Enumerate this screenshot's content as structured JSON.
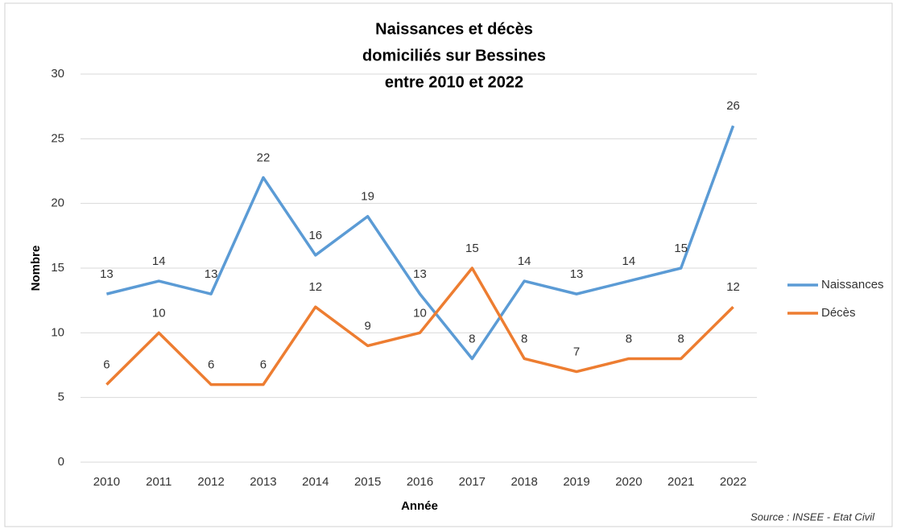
{
  "chart_data": {
    "type": "line",
    "title": [
      "Naissances et décès",
      "domiciliés sur Bessines",
      "entre 2010 et 2022"
    ],
    "x_label": "Année",
    "y_label": "Nombre",
    "source": "Source : INSEE - Etat Civil",
    "categories": [
      "2010",
      "2011",
      "2012",
      "2013",
      "2014",
      "2015",
      "2016",
      "2017",
      "2018",
      "2019",
      "2020",
      "2021",
      "2022"
    ],
    "series": [
      {
        "name": "Naissances",
        "color": "#5b9bd5",
        "values": [
          13,
          14,
          13,
          22,
          16,
          19,
          13,
          8,
          14,
          13,
          14,
          15,
          26
        ]
      },
      {
        "name": "Décès",
        "color": "#ed7d31",
        "values": [
          6,
          10,
          6,
          6,
          12,
          9,
          10,
          15,
          8,
          7,
          8,
          8,
          12
        ]
      }
    ],
    "ylim": [
      0,
      30
    ],
    "yticks": [
      0,
      5,
      10,
      15,
      20,
      25,
      30
    ],
    "grid": true,
    "legend": "right"
  }
}
